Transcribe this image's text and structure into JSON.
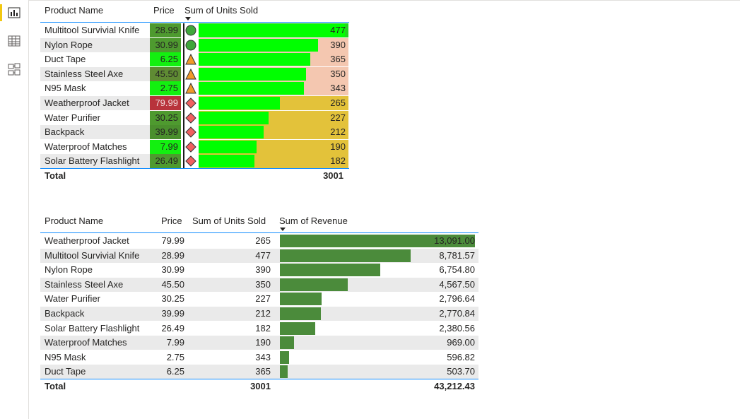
{
  "rail": {
    "icons": [
      "report-view-icon",
      "data-view-icon",
      "model-view-icon"
    ]
  },
  "table1": {
    "headers": {
      "product": "Product Name",
      "price": "Price",
      "units": "Sum of Units Sold"
    },
    "sorted_by": "units",
    "rows": [
      {
        "product": "Multitool Survivial Knife",
        "price": "28.99",
        "units": "477",
        "units_value": 477,
        "marker": "circle",
        "price_color": "#4e9a2f",
        "units_bg": "#22d41f"
      },
      {
        "product": "Nylon Rope",
        "price": "30.99",
        "units": "390",
        "units_value": 390,
        "marker": "circle",
        "price_color": "#4e9a2f",
        "units_bg": "#f4c7b0"
      },
      {
        "product": "Duct Tape",
        "price": "6.25",
        "units": "365",
        "units_value": 365,
        "marker": "triangle",
        "price_color": "#13f010",
        "units_bg": "#f4c7b0"
      },
      {
        "product": "Stainless Steel Axe",
        "price": "45.50",
        "units": "350",
        "units_value": 350,
        "marker": "triangle",
        "price_color": "#5f8b33",
        "units_bg": "#f4c7b0"
      },
      {
        "product": "N95 Mask",
        "price": "2.75",
        "units": "343",
        "units_value": 343,
        "marker": "triangle",
        "price_color": "#13f010",
        "units_bg": "#f4c7b0"
      },
      {
        "product": "Weatherproof Jacket",
        "price": "79.99",
        "units": "265",
        "units_value": 265,
        "marker": "diamond",
        "price_color": "#b8333b",
        "units_bg": "#e3c23a"
      },
      {
        "product": "Water Purifier",
        "price": "30.25",
        "units": "227",
        "units_value": 227,
        "marker": "diamond",
        "price_color": "#4e9a2f",
        "units_bg": "#e3c23a"
      },
      {
        "product": "Backpack",
        "price": "39.99",
        "units": "212",
        "units_value": 212,
        "marker": "diamond",
        "price_color": "#4a8f2d",
        "units_bg": "#e3c23a"
      },
      {
        "product": "Waterproof Matches",
        "price": "7.99",
        "units": "190",
        "units_value": 190,
        "marker": "diamond",
        "price_color": "#13f010",
        "units_bg": "#e3c23a"
      },
      {
        "product": "Solar Battery Flashlight",
        "price": "26.49",
        "units": "182",
        "units_value": 182,
        "marker": "diamond",
        "price_color": "#4e9a2f",
        "units_bg": "#e3c23a"
      }
    ],
    "total": {
      "label": "Total",
      "units": "3001"
    },
    "colors": {
      "databar": "#00ff00",
      "circle": "#3fa63b",
      "triangle": "#f09a2a",
      "diamond": "#f06060"
    }
  },
  "table2": {
    "headers": {
      "product": "Product Name",
      "price": "Price",
      "units": "Sum of Units Sold",
      "revenue": "Sum of Revenue"
    },
    "sorted_by": "revenue",
    "rows": [
      {
        "product": "Weatherproof Jacket",
        "price": "79.99",
        "units": "265",
        "revenue": "13,091.00",
        "revenue_value": 13091.0
      },
      {
        "product": "Multitool Survivial Knife",
        "price": "28.99",
        "units": "477",
        "revenue": "8,781.57",
        "revenue_value": 8781.57
      },
      {
        "product": "Nylon Rope",
        "price": "30.99",
        "units": "390",
        "revenue": "6,754.80",
        "revenue_value": 6754.8
      },
      {
        "product": "Stainless Steel Axe",
        "price": "45.50",
        "units": "350",
        "revenue": "4,567.50",
        "revenue_value": 4567.5
      },
      {
        "product": "Water Purifier",
        "price": "30.25",
        "units": "227",
        "revenue": "2,796.64",
        "revenue_value": 2796.64
      },
      {
        "product": "Backpack",
        "price": "39.99",
        "units": "212",
        "revenue": "2,770.84",
        "revenue_value": 2770.84
      },
      {
        "product": "Solar Battery Flashlight",
        "price": "26.49",
        "units": "182",
        "revenue": "2,380.56",
        "revenue_value": 2380.56
      },
      {
        "product": "Waterproof Matches",
        "price": "7.99",
        "units": "190",
        "revenue": "969.00",
        "revenue_value": 969.0
      },
      {
        "product": "N95 Mask",
        "price": "2.75",
        "units": "343",
        "revenue": "596.82",
        "revenue_value": 596.82
      },
      {
        "product": "Duct Tape",
        "price": "6.25",
        "units": "365",
        "revenue": "503.70",
        "revenue_value": 503.7
      }
    ],
    "total": {
      "label": "Total",
      "units": "3001",
      "revenue": "43,212.43"
    },
    "colors": {
      "databar": "#4b8b3b"
    }
  }
}
